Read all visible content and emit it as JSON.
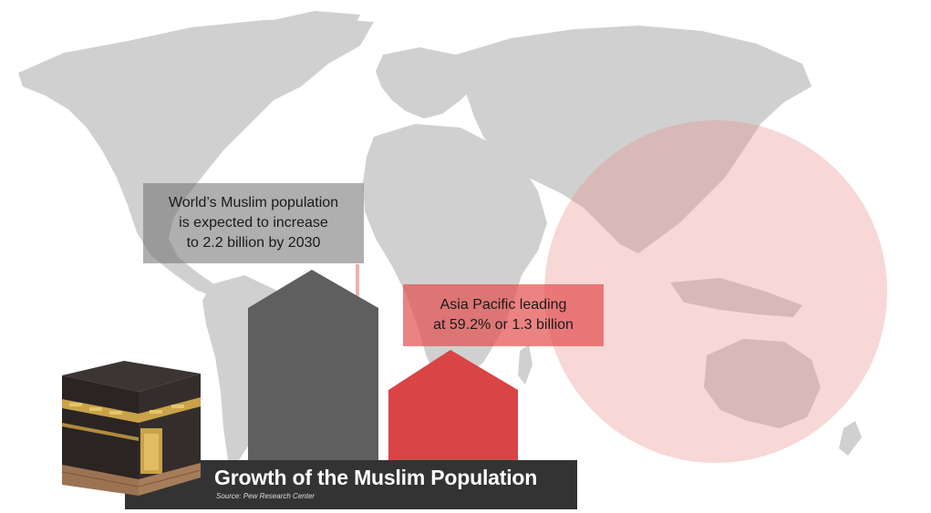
{
  "callouts": {
    "world": {
      "line1": "World’s Muslim population",
      "line2": "is expected to increase",
      "line3": "to 2.2 billion by 2030"
    },
    "asia": {
      "line1": "Asia Pacific leading",
      "line2": "at 59.2% or 1.3 billion"
    }
  },
  "footer": {
    "title": "Growth of the Muslim Population",
    "source": "Source: Pew Research Center"
  },
  "colors": {
    "map": "#d0d0d0",
    "highlight_circle": "#f4c3c3",
    "gray_bar": "#5f5f5f",
    "red_bar": "#d94444",
    "footer_bar": "#333333"
  },
  "icons": [
    "world-map-graphic",
    "asia-pacific-highlight-circle",
    "kaaba-illustration"
  ]
}
